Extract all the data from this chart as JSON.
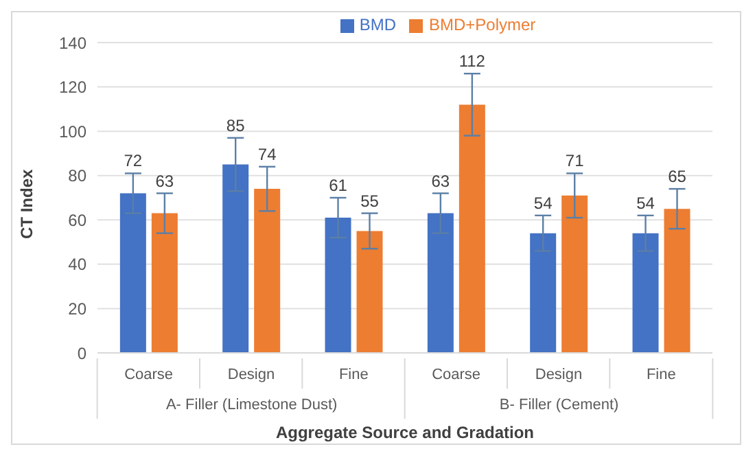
{
  "chart_data": {
    "type": "bar",
    "xlabel": "Aggregate Source and Gradation",
    "ylabel": "CT Index",
    "categories": [
      "Coarse",
      "Design",
      "Fine",
      "Coarse",
      "Design",
      "Fine"
    ],
    "annotations": [
      "A- Filler (Limestone Dust)",
      "B- Filler (Cement)"
    ],
    "series": [
      {
        "name": "BMD",
        "color": "#4472c4",
        "values": [
          72,
          85,
          61,
          63,
          54,
          54
        ],
        "errors": [
          9,
          12,
          9,
          9,
          8,
          8
        ]
      },
      {
        "name": "BMD+Polymer",
        "color": "#ed7d31",
        "values": [
          63,
          74,
          55,
          112,
          71,
          65
        ],
        "errors": [
          9,
          10,
          8,
          14,
          10,
          9
        ]
      }
    ],
    "ylim": [
      0,
      140
    ],
    "yticks": [
      0,
      20,
      40,
      60,
      80,
      100,
      120,
      140
    ],
    "grid": "y",
    "legend": "top",
    "data_labels": true
  }
}
